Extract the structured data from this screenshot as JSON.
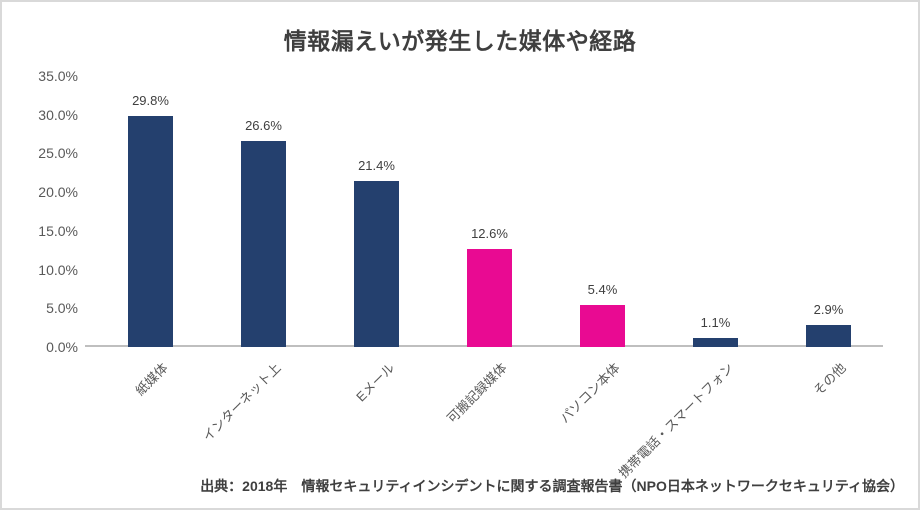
{
  "source": "出典：2018年　情報セキュリティインシデントに関する調査報告書（NPO日本ネットワークセキュリティ協会）",
  "colors": {
    "bar_navy": "#24406E",
    "bar_magenta": "#E90A92",
    "axis_line": "#BFBFBF",
    "frame_border": "#D9D9D9",
    "title_text": "#3F3F3F",
    "tick_text": "#595959"
  },
  "chart_data": {
    "type": "bar",
    "title": "情報漏えいが発生した媒体や経路",
    "categories": [
      "紙媒体",
      "インターネット上",
      "Eメール",
      "可搬記録媒体",
      "パソコン本体",
      "携帯電話・スマートフォン",
      "その他"
    ],
    "values": [
      29.8,
      26.6,
      21.4,
      12.6,
      5.4,
      1.1,
      2.9
    ],
    "value_labels": [
      "29.8%",
      "26.6%",
      "21.4%",
      "12.6%",
      "5.4%",
      "1.1%",
      "2.9%"
    ],
    "bar_colors": [
      "#24406E",
      "#24406E",
      "#24406E",
      "#E90A92",
      "#E90A92",
      "#24406E",
      "#24406E"
    ],
    "yticks": [
      "0.0%",
      "5.0%",
      "10.0%",
      "15.0%",
      "20.0%",
      "25.0%",
      "30.0%",
      "35.0%"
    ],
    "ylim": [
      0,
      35
    ],
    "xlabel": "",
    "ylabel": "",
    "grid": false,
    "legend": null
  }
}
